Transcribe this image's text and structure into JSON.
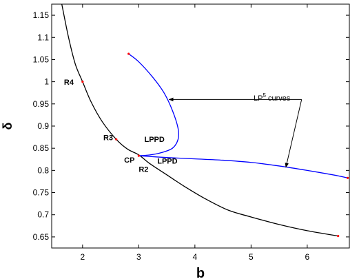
{
  "chart_data": {
    "type": "line",
    "title": "",
    "xlabel": "b",
    "ylabel": "δ",
    "xlim": [
      1.45,
      6.75
    ],
    "ylim": [
      0.625,
      1.175
    ],
    "grid": false,
    "legend": "none",
    "x_ticks": [
      {
        "value": 2,
        "label": "2"
      },
      {
        "value": 3,
        "label": "3"
      },
      {
        "value": 4,
        "label": "4"
      },
      {
        "value": 5,
        "label": "5"
      },
      {
        "value": 6,
        "label": "6"
      }
    ],
    "y_ticks": [
      {
        "value": 0.65,
        "label": "0.65"
      },
      {
        "value": 0.7,
        "label": "0.7"
      },
      {
        "value": 0.75,
        "label": "0.75"
      },
      {
        "value": 0.8,
        "label": "0.8"
      },
      {
        "value": 0.85,
        "label": "0.85"
      },
      {
        "value": 0.9,
        "label": "0.9"
      },
      {
        "value": 0.95,
        "label": "0.95"
      },
      {
        "value": 1,
        "label": "1"
      },
      {
        "value": 1.05,
        "label": "1.05"
      },
      {
        "value": 1.1,
        "label": "1.1"
      },
      {
        "value": 1.15,
        "label": "1.15"
      }
    ],
    "series": [
      {
        "color": "#000000",
        "points": [
          [
            1.63,
            1.175
          ],
          [
            1.75,
            1.1
          ],
          [
            1.87,
            1.04
          ],
          [
            2.0,
            1.0
          ],
          [
            2.15,
            0.955
          ],
          [
            2.35,
            0.91
          ],
          [
            2.6,
            0.87
          ],
          [
            2.8,
            0.848
          ],
          [
            3.0,
            0.835
          ],
          [
            3.2,
            0.815
          ],
          [
            3.5,
            0.79
          ],
          [
            3.8,
            0.765
          ],
          [
            4.2,
            0.735
          ],
          [
            4.6,
            0.71
          ],
          [
            5.0,
            0.695
          ],
          [
            5.5,
            0.678
          ],
          [
            6.0,
            0.664
          ],
          [
            6.55,
            0.652
          ]
        ]
      },
      {
        "color": "#0000ff",
        "points": [
          [
            2.82,
            1.063
          ],
          [
            3.0,
            1.045
          ],
          [
            3.25,
            1.01
          ],
          [
            3.45,
            0.975
          ],
          [
            3.6,
            0.935
          ],
          [
            3.7,
            0.895
          ],
          [
            3.7,
            0.87
          ],
          [
            3.6,
            0.85
          ],
          [
            3.4,
            0.84
          ],
          [
            3.2,
            0.835
          ],
          [
            3.0,
            0.833
          ]
        ]
      },
      {
        "color": "#0000ff",
        "points": [
          [
            3.0,
            0.833
          ],
          [
            3.5,
            0.829
          ],
          [
            4.0,
            0.826
          ],
          [
            4.5,
            0.823
          ],
          [
            5.0,
            0.818
          ],
          [
            5.5,
            0.81
          ],
          [
            6.0,
            0.8
          ],
          [
            6.5,
            0.789
          ],
          [
            6.72,
            0.783
          ]
        ]
      }
    ],
    "marked_points": [
      {
        "x": 2.0,
        "y": 1.0
      },
      {
        "x": 2.6,
        "y": 0.87
      },
      {
        "x": 3.0,
        "y": 0.833
      },
      {
        "x": 6.55,
        "y": 0.652
      },
      {
        "x": 2.82,
        "y": 1.063
      },
      {
        "x": 6.72,
        "y": 0.783
      }
    ],
    "annotations": [
      {
        "text": "R4",
        "x": 1.67,
        "y": 0.993
      },
      {
        "text": "R3",
        "x": 2.37,
        "y": 0.868
      },
      {
        "text": "LPPD",
        "x": 3.1,
        "y": 0.864
      },
      {
        "text": "CP",
        "x": 2.74,
        "y": 0.818
      },
      {
        "text": "LPPD",
        "x": 3.33,
        "y": 0.815
      },
      {
        "text": "R2",
        "x": 3.0,
        "y": 0.797
      }
    ],
    "callout": {
      "label": "LP",
      "superscript": "5",
      "suffix": " curves",
      "x": 5.9,
      "y": 0.958,
      "arrow_origin": [
        5.9,
        0.96
      ],
      "arrow_targets": [
        [
          3.54,
          0.96
        ],
        [
          5.62,
          0.807
        ]
      ]
    }
  }
}
